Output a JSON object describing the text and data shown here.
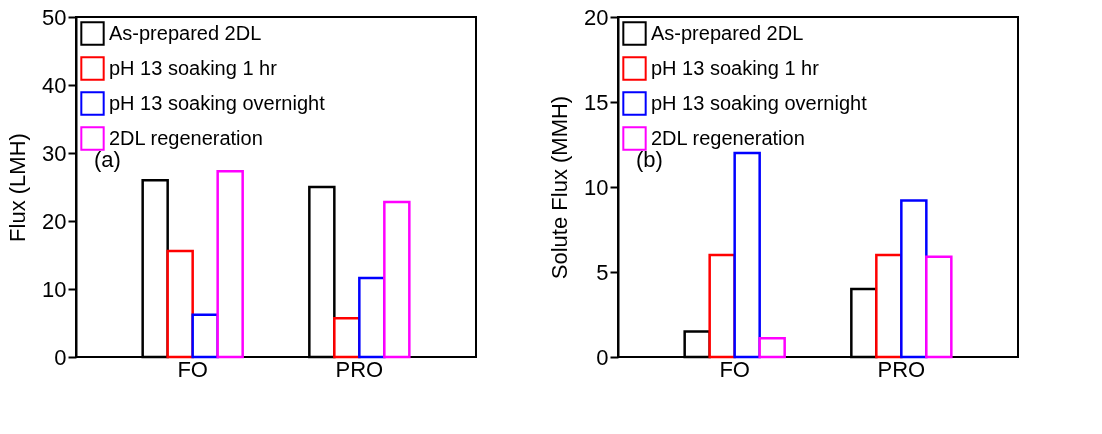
{
  "chart_data": [
    {
      "type": "bar",
      "ylabel": "Flux (LMH)",
      "categories": [
        "FO",
        "PRO"
      ],
      "ylim": [
        0,
        50
      ],
      "yticks": [
        0,
        10,
        20,
        30,
        40,
        50
      ],
      "legend": "top left",
      "annotations": [
        "(a)"
      ],
      "series": [
        {
          "name": "As-prepared 2DL",
          "color": "#000000",
          "values": [
            26.0,
            25.0
          ]
        },
        {
          "name": "pH 13 soaking 1 hr",
          "color": "#ff0000",
          "values": [
            15.6,
            5.7
          ]
        },
        {
          "name": "pH 13 soaking overnight",
          "color": "#0000ff",
          "values": [
            6.2,
            11.6
          ]
        },
        {
          "name": "2DL regeneration",
          "color": "#ff00ff",
          "values": [
            27.3,
            22.8
          ]
        }
      ]
    },
    {
      "type": "bar",
      "ylabel": "Solute Flux (MMH)",
      "categories": [
        "FO",
        "PRO"
      ],
      "ylim": [
        0,
        20
      ],
      "yticks": [
        0,
        5,
        10,
        15,
        20
      ],
      "legend": "top left",
      "annotations": [
        "(b)"
      ],
      "series": [
        {
          "name": "As-prepared 2DL",
          "color": "#000000",
          "values": [
            1.5,
            4.0
          ]
        },
        {
          "name": "pH 13 soaking 1 hr",
          "color": "#ff0000",
          "values": [
            6.0,
            6.0
          ]
        },
        {
          "name": "pH 13 soaking overnight",
          "color": "#0000ff",
          "values": [
            12.0,
            9.2
          ]
        },
        {
          "name": "2DL regeneration",
          "color": "#ff00ff",
          "values": [
            1.1,
            5.9
          ]
        }
      ]
    }
  ]
}
